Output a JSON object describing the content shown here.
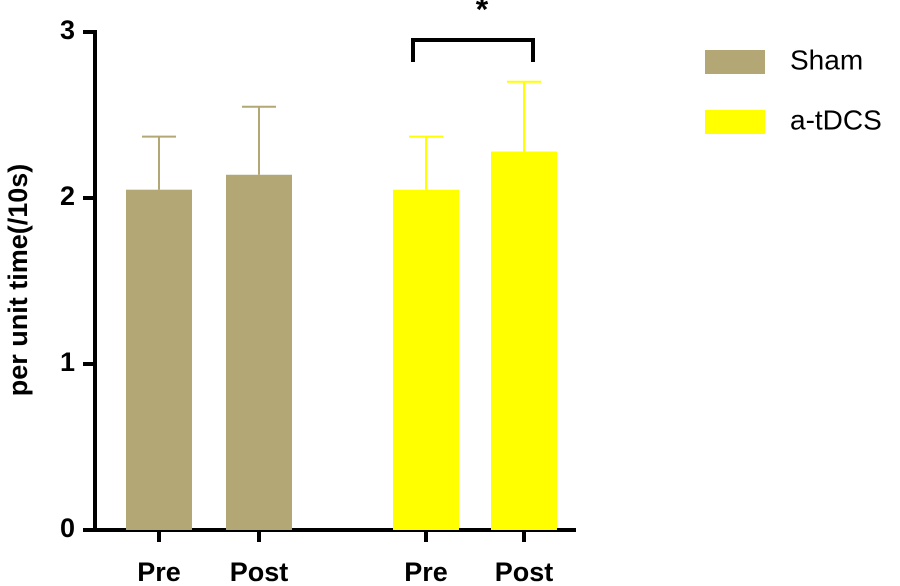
{
  "chart_data": {
    "type": "bar",
    "ylabel": "per unit time(/10s)",
    "categories": [
      "Pre",
      "Post",
      "Pre",
      "Post"
    ],
    "series": [
      {
        "name": "Sham",
        "color": "#b3a775",
        "values": [
          2.05,
          2.14,
          null,
          null
        ],
        "errors": [
          0.32,
          0.41,
          null,
          null
        ]
      },
      {
        "name": "a-tDCS",
        "color": "#ffff00",
        "values": [
          null,
          null,
          2.05,
          2.28
        ],
        "errors": [
          null,
          null,
          0.32,
          0.42
        ]
      }
    ],
    "annotation": "*",
    "ylim": [
      0,
      3
    ],
    "yticks": [
      0,
      1,
      2,
      3
    ],
    "grid": false
  }
}
